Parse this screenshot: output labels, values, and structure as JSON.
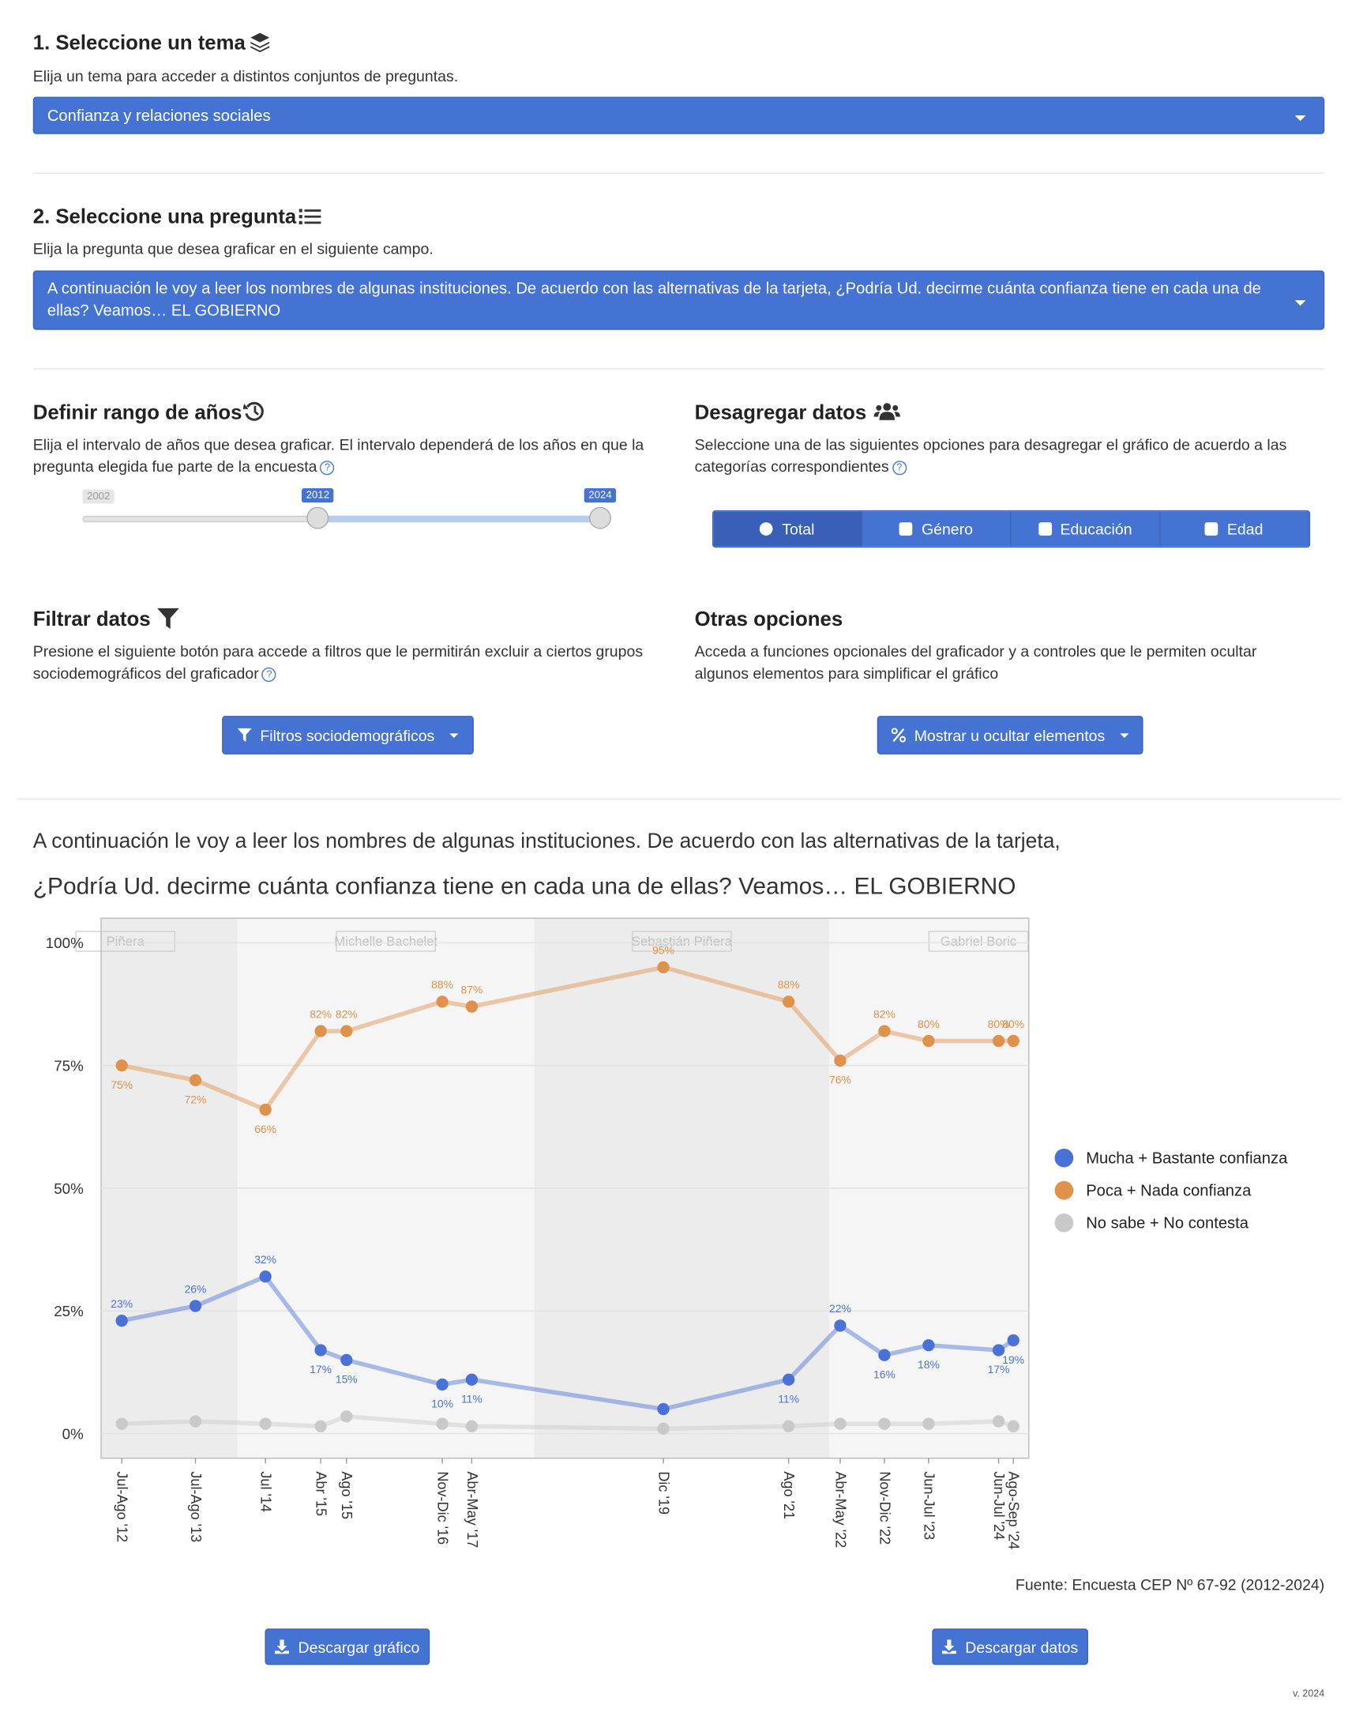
{
  "topic": {
    "title": "1. Seleccione un tema",
    "hint": "Elija un tema para acceder a distintos conjuntos de preguntas.",
    "selected": "Confianza y relaciones sociales"
  },
  "question": {
    "title": "2. Seleccione una pregunta",
    "hint": "Elija la pregunta que desea graficar en el siguiente campo.",
    "selected": "A continuación le voy a leer los nombres de algunas instituciones. De acuerdo con las alternativas de la tarjeta, ¿Podría Ud. decirme cuánta confianza tiene en cada una de ellas? Veamos… EL GOBIERNO"
  },
  "years": {
    "title": "Definir rango de años",
    "hint": "Elija el intervalo de años que desea graficar. El intervalo dependerá de los años en que la pregunta elegida fue parte de la encuesta",
    "min": 2002,
    "max": 2024,
    "from": 2012,
    "to": 2024
  },
  "disaggregate": {
    "title": "Desagregar datos",
    "hint": "Seleccione una de las siguientes opciones para desagregar el gráfico de acuerdo a las categorías correspondientes",
    "options": [
      "Total",
      "Género",
      "Educación",
      "Edad"
    ]
  },
  "filter": {
    "title": "Filtrar datos",
    "hint": "Presione el siguiente botón para accede a filtros que le permitirán excluir a ciertos grupos sociodemográficos del graficador",
    "button": "Filtros sociodemográficos"
  },
  "other": {
    "title": "Otras opciones",
    "hint": "Acceda a funciones opcionales del graficador y a controles que le permiten ocultar algunos elementos para simplificar el gráfico",
    "button": "Mostrar u ocultar elementos"
  },
  "chart_data": {
    "type": "line",
    "title": "A continuación le voy a leer los nombres de algunas instituciones. De acuerdo con las alternativas de la tarjeta,",
    "subtitle": "¿Podría Ud. decirme cuánta confianza tiene en cada una de ellas? Veamos… EL GOBIERNO",
    "source": "Fuente: Encuesta CEP Nº 67-92 (2012-2024)",
    "x": [
      2012.55,
      2013.55,
      2014.5,
      2015.25,
      2015.6,
      2016.9,
      2017.3,
      2019.9,
      2021.6,
      2022.3,
      2022.9,
      2023.5,
      2024.45,
      2024.65
    ],
    "xlim": [
      2012.27,
      2024.86
    ],
    "xticks": [
      {
        "value": 2012.55,
        "label": "Jul-Ago '12"
      },
      {
        "value": 2013.55,
        "label": "Jul-Ago '13"
      },
      {
        "value": 2014.5,
        "label": "Jul '14"
      },
      {
        "value": 2015.25,
        "label": "Abr '15"
      },
      {
        "value": 2015.6,
        "label": "Ago '15"
      },
      {
        "value": 2016.9,
        "label": "Nov-Dic '16"
      },
      {
        "value": 2017.3,
        "label": "Abr-May '17"
      },
      {
        "value": 2019.9,
        "label": "Dic '19"
      },
      {
        "value": 2021.6,
        "label": "Ago '21"
      },
      {
        "value": 2022.3,
        "label": "Abr-May '22"
      },
      {
        "value": 2022.9,
        "label": "Nov-Dic '22"
      },
      {
        "value": 2023.5,
        "label": "Jun-Jul '23"
      },
      {
        "value": 2024.45,
        "label": "Jun-Jul '24"
      },
      {
        "value": 2024.65,
        "label": "Ago-Sep '24"
      }
    ],
    "ylim": [
      -5,
      105
    ],
    "yticks": [
      {
        "value": 0,
        "label": "0%"
      },
      {
        "value": 25,
        "label": "25%"
      },
      {
        "value": 50,
        "label": "50%"
      },
      {
        "value": 75,
        "label": "75%"
      },
      {
        "value": 100,
        "label": "100%"
      }
    ],
    "grid": true,
    "periods": [
      {
        "name": "Piñera",
        "start": 2012.27,
        "end": 2014.12,
        "color": "#ececec"
      },
      {
        "name": "Michelle Bachelet",
        "start": 2014.12,
        "end": 2018.15,
        "color": "#f5f5f5"
      },
      {
        "name": "Sebastián Piñera",
        "start": 2018.15,
        "end": 2022.15,
        "color": "#ececec"
      },
      {
        "name": "Gabriel Boric",
        "start": 2022.15,
        "end": 2024.86,
        "color": "#f5f5f5"
      }
    ],
    "series": [
      {
        "name": "Mucha + Bastante confianza",
        "color": "#4a72d6",
        "values": [
          23,
          26,
          32,
          17,
          15,
          10,
          11,
          5,
          11,
          22,
          16,
          18,
          17,
          19
        ],
        "value_labels": [
          "23%",
          "26%",
          "32%",
          "17%",
          "15%",
          "10%",
          "11%",
          null,
          "11%",
          "22%",
          "16%",
          "18%",
          "17%",
          "19%"
        ]
      },
      {
        "name": "Poca + Nada confianza",
        "color": "#e0914a",
        "values": [
          75,
          72,
          66,
          82,
          82,
          88,
          87,
          95,
          88,
          76,
          82,
          80,
          80,
          80
        ],
        "value_labels": [
          "75%",
          "72%",
          "66%",
          "82%",
          "82%",
          "88%",
          "87%",
          "95%",
          "88%",
          "76%",
          "82%",
          "80%",
          "80%",
          "80%"
        ]
      },
      {
        "name": "No sabe + No contesta",
        "color": "#c9c9c9",
        "values": [
          2,
          2.5,
          2,
          1.5,
          3.5,
          2,
          1.5,
          1,
          1.5,
          2,
          2,
          2,
          2.5,
          1.5
        ]
      }
    ],
    "legend": "right"
  },
  "footer": {
    "download_chart": "Descargar gráfico",
    "download_data": "Descargar datos",
    "version": "v. 2024"
  }
}
